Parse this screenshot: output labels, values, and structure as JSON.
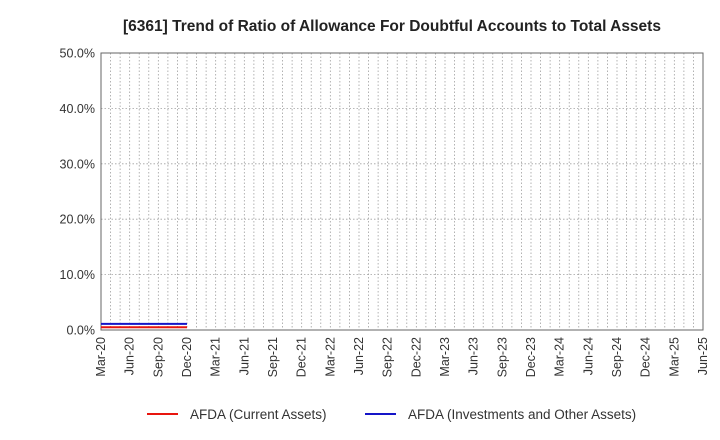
{
  "chart_data": {
    "type": "line",
    "title": "[6361]  Trend of Ratio of Allowance For Doubtful Accounts to Total Assets",
    "xlabel": "",
    "ylabel": "",
    "y_ticks": [
      "0.0%",
      "10.0%",
      "20.0%",
      "30.0%",
      "40.0%",
      "50.0%"
    ],
    "ylim": [
      0,
      50
    ],
    "x_ticks": [
      "Mar-20",
      "Jun-20",
      "Sep-20",
      "Dec-20",
      "Mar-21",
      "Jun-21",
      "Sep-21",
      "Dec-21",
      "Mar-22",
      "Jun-22",
      "Sep-22",
      "Dec-22",
      "Mar-23",
      "Jun-23",
      "Sep-23",
      "Dec-23",
      "Mar-24",
      "Jun-24",
      "Sep-24",
      "Dec-24",
      "Mar-25",
      "Jun-25"
    ],
    "grid": true,
    "legend_position": "bottom",
    "series": [
      {
        "name": "AFDA (Current Assets)",
        "color": "#e8150e",
        "x": [
          "Mar-20",
          "Jun-20",
          "Sep-20",
          "Dec-20"
        ],
        "values": [
          0.5,
          0.5,
          0.5,
          0.5
        ]
      },
      {
        "name": "AFDA (Investments and Other Assets)",
        "color": "#1515c8",
        "x": [
          "Mar-20",
          "Jun-20",
          "Sep-20",
          "Dec-20"
        ],
        "values": [
          1.1,
          1.1,
          1.1,
          1.1
        ]
      }
    ]
  }
}
